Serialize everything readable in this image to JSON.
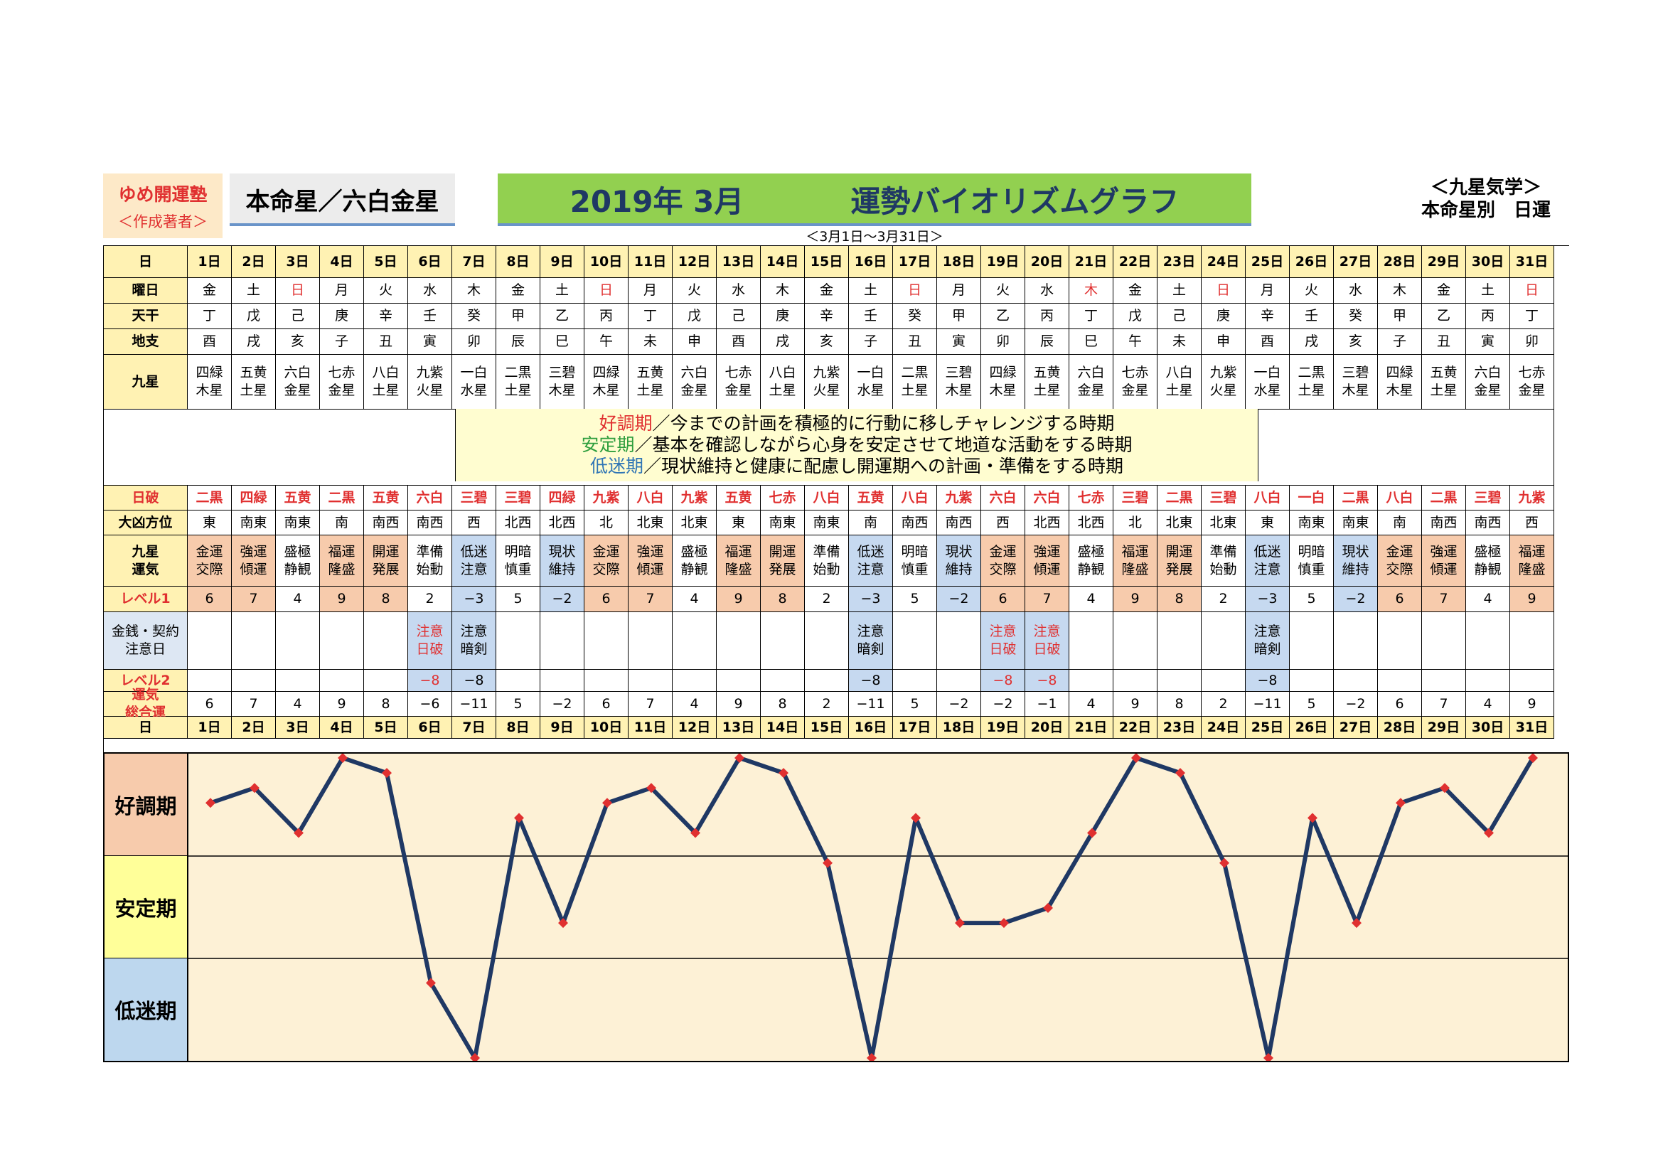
{
  "header": {
    "org_name": "ゆめ開運塾",
    "org_sub": "＜作成著者＞",
    "star_title": "本命星／六白金星",
    "title_year_month": "2019年 3月",
    "title_main": "運勢バイオリズムグラフ",
    "date_range": "＜3月1日～3月31日＞",
    "right_label_1": "＜九星気学＞",
    "right_label_2": "本命星別　日運"
  },
  "row_labels": {
    "day": "日",
    "weekday": "曜日",
    "tenkan": "天干",
    "chishi": "地支",
    "kyusei": "九星",
    "nippa": "日破",
    "daikyo": "大凶方位",
    "unki": "九星\n運気",
    "level1": "レベル1",
    "money": "金銭・契約\n注意日",
    "level2": "レベル2",
    "total": "運気\n総合運"
  },
  "legend": {
    "good_term": "好調期",
    "good_desc": "／今までの計画を積極的に行動に移しチャレンジする時期",
    "stable_term": "安定期",
    "stable_desc": "／基本を確認しながら心身を安定させて地道な活動をする時期",
    "low_term": "低迷期",
    "low_desc": "／現状維持と健康に配慮し開運期への計画・準備をする時期"
  },
  "bands": {
    "good": "好調期",
    "stable": "安定期",
    "low": "低迷期"
  },
  "colors": {
    "label_bg": "#fff2b3",
    "good_band": "#f7cbac",
    "stable_band": "#ffff99",
    "low_band": "#bdd7ee",
    "chart_bg": "#fdf1d6",
    "line": "#1f3864",
    "marker": "#e03030",
    "unki_good": "#f7cbac",
    "unki_low": "#c6d9f0",
    "red_text": "#e03030"
  },
  "days": [
    "1日",
    "2日",
    "3日",
    "4日",
    "5日",
    "6日",
    "7日",
    "8日",
    "9日",
    "10日",
    "11日",
    "12日",
    "13日",
    "14日",
    "15日",
    "16日",
    "17日",
    "18日",
    "19日",
    "20日",
    "21日",
    "22日",
    "23日",
    "24日",
    "25日",
    "26日",
    "27日",
    "28日",
    "29日",
    "30日",
    "31日"
  ],
  "weekdays": [
    "金",
    "土",
    "日",
    "月",
    "火",
    "水",
    "木",
    "金",
    "土",
    "日",
    "月",
    "火",
    "水",
    "木",
    "金",
    "土",
    "日",
    "月",
    "火",
    "水",
    "木",
    "金",
    "土",
    "日",
    "月",
    "火",
    "水",
    "木",
    "金",
    "土",
    "日"
  ],
  "weekday_red": [
    false,
    false,
    true,
    false,
    false,
    false,
    false,
    false,
    false,
    true,
    false,
    false,
    false,
    false,
    false,
    false,
    true,
    false,
    false,
    false,
    true,
    false,
    false,
    true,
    false,
    false,
    false,
    false,
    false,
    false,
    true
  ],
  "tenkan": [
    "丁",
    "戊",
    "己",
    "庚",
    "辛",
    "壬",
    "癸",
    "甲",
    "乙",
    "丙",
    "丁",
    "戊",
    "己",
    "庚",
    "辛",
    "壬",
    "癸",
    "甲",
    "乙",
    "丙",
    "丁",
    "戊",
    "己",
    "庚",
    "辛",
    "壬",
    "癸",
    "甲",
    "乙",
    "丙",
    "丁"
  ],
  "chishi": [
    "酉",
    "戌",
    "亥",
    "子",
    "丑",
    "寅",
    "卯",
    "辰",
    "巳",
    "午",
    "未",
    "申",
    "酉",
    "戌",
    "亥",
    "子",
    "丑",
    "寅",
    "卯",
    "辰",
    "巳",
    "午",
    "未",
    "申",
    "酉",
    "戌",
    "亥",
    "子",
    "丑",
    "寅",
    "卯"
  ],
  "kyusei": [
    "四緑\n木星",
    "五黄\n土星",
    "六白\n金星",
    "七赤\n金星",
    "八白\n土星",
    "九紫\n火星",
    "一白\n水星",
    "二黒\n土星",
    "三碧\n木星",
    "四緑\n木星",
    "五黄\n土星",
    "六白\n金星",
    "七赤\n金星",
    "八白\n土星",
    "九紫\n火星",
    "一白\n水星",
    "二黒\n土星",
    "三碧\n木星",
    "四緑\n木星",
    "五黄\n土星",
    "六白\n金星",
    "七赤\n金星",
    "八白\n土星",
    "九紫\n火星",
    "一白\n水星",
    "二黒\n土星",
    "三碧\n木星",
    "四緑\n木星",
    "五黄\n土星",
    "六白\n金星",
    "七赤\n金星"
  ],
  "nippa": [
    "二黒",
    "四緑",
    "五黄",
    "二黒",
    "五黄",
    "六白",
    "三碧",
    "三碧",
    "四緑",
    "九紫",
    "八白",
    "九紫",
    "五黄",
    "七赤",
    "八白",
    "五黄",
    "八白",
    "九紫",
    "六白",
    "六白",
    "七赤",
    "三碧",
    "二黒",
    "三碧",
    "八白",
    "一白",
    "二黒",
    "八白",
    "二黒",
    "三碧",
    "九紫"
  ],
  "daikyo": [
    "東",
    "南東",
    "南東",
    "南",
    "南西",
    "南西",
    "西",
    "北西",
    "北西",
    "北",
    "北東",
    "北東",
    "東",
    "南東",
    "南東",
    "南",
    "南西",
    "南西",
    "西",
    "北西",
    "北西",
    "北",
    "北東",
    "北東",
    "東",
    "南東",
    "南東",
    "南",
    "南西",
    "南西",
    "西"
  ],
  "unki": [
    "金運\n交際",
    "強運\n傾運",
    "盛極\n静観",
    "福運\n隆盛",
    "開運\n発展",
    "準備\n始動",
    "低迷\n注意",
    "明暗\n慎重",
    "現状\n維持",
    "金運\n交際",
    "強運\n傾運",
    "盛極\n静観",
    "福運\n隆盛",
    "開運\n発展",
    "準備\n始動",
    "低迷\n注意",
    "明暗\n慎重",
    "現状\n維持",
    "金運\n交際",
    "強運\n傾運",
    "盛極\n静観",
    "福運\n隆盛",
    "開運\n発展",
    "準備\n始動",
    "低迷\n注意",
    "明暗\n慎重",
    "現状\n維持",
    "金運\n交際",
    "強運\n傾運",
    "盛極\n静観",
    "福運\n隆盛"
  ],
  "level1": [
    "6",
    "7",
    "4",
    "9",
    "8",
    "2",
    "−3",
    "5",
    "−2",
    "6",
    "7",
    "4",
    "9",
    "8",
    "2",
    "−3",
    "5",
    "−2",
    "6",
    "7",
    "4",
    "9",
    "8",
    "2",
    "−3",
    "5",
    "−2",
    "6",
    "7",
    "4",
    "9"
  ],
  "money": [
    "",
    "",
    "",
    "",
    "",
    "注意\n日破",
    "注意\n暗剣",
    "",
    "",
    "",
    "",
    "",
    "",
    "",
    "",
    "注意\n暗剣",
    "",
    "",
    "注意\n日破",
    "注意\n日破",
    "",
    "",
    "",
    "",
    "注意\n暗剣",
    "",
    "",
    "",
    "",
    "",
    ""
  ],
  "money_red": [
    false,
    false,
    false,
    false,
    false,
    true,
    false,
    false,
    false,
    false,
    false,
    false,
    false,
    false,
    false,
    false,
    false,
    false,
    true,
    true,
    false,
    false,
    false,
    false,
    false,
    false,
    false,
    false,
    false,
    false,
    false
  ],
  "level2": [
    "",
    "",
    "",
    "",
    "",
    "−8",
    "−8",
    "",
    "",
    "",
    "",
    "",
    "",
    "",
    "",
    "−8",
    "",
    "",
    "−8",
    "−8",
    "",
    "",
    "",
    "",
    "−8",
    "",
    "",
    "",
    "",
    "",
    ""
  ],
  "total": [
    "6",
    "7",
    "4",
    "9",
    "8",
    "−6",
    "−11",
    "5",
    "−2",
    "6",
    "7",
    "4",
    "9",
    "8",
    "2",
    "−11",
    "5",
    "−2",
    "−2",
    "−1",
    "4",
    "9",
    "8",
    "2",
    "−11",
    "5",
    "−2",
    "6",
    "7",
    "4",
    "9"
  ],
  "chart_data": {
    "type": "line",
    "x": [
      "1日",
      "2日",
      "3日",
      "4日",
      "5日",
      "6日",
      "7日",
      "8日",
      "9日",
      "10日",
      "11日",
      "12日",
      "13日",
      "14日",
      "15日",
      "16日",
      "17日",
      "18日",
      "19日",
      "20日",
      "21日",
      "22日",
      "23日",
      "24日",
      "25日",
      "26日",
      "27日",
      "28日",
      "29日",
      "30日",
      "31日"
    ],
    "series": [
      {
        "values": [
          6,
          7,
          4,
          9,
          8,
          -6,
          -11,
          5,
          -2,
          6,
          7,
          4,
          9,
          8,
          2,
          -11,
          5,
          -2,
          -2,
          -1,
          4,
          9,
          8,
          2,
          -11,
          5,
          -2,
          6,
          7,
          4,
          9
        ]
      }
    ],
    "ylim": [
      -11,
      9
    ],
    "bands": [
      "好調期",
      "安定期",
      "低迷期"
    ],
    "grid": true
  }
}
